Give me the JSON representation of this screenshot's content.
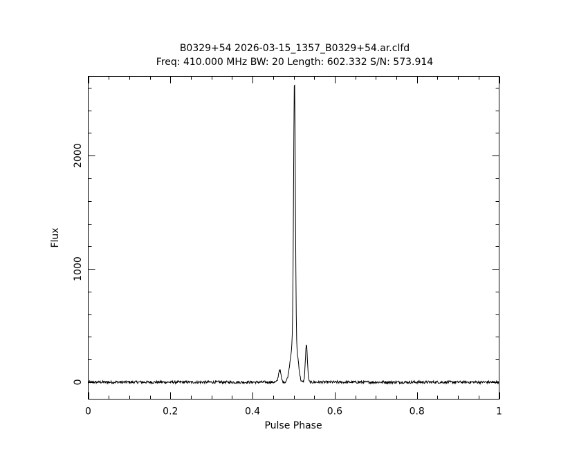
{
  "chart_data": {
    "type": "line",
    "title": "B0329+54 2026-03-15_1357_B0329+54.ar.clfd",
    "subtitle": "Freq: 410.000 MHz BW: 20 Length: 602.332 S/N: 573.914",
    "xlabel": "Pulse Phase",
    "ylabel": "Flux",
    "xlim": [
      0,
      1
    ],
    "ylim": [
      -150,
      2700
    ],
    "x_ticks": [
      0,
      0.2,
      0.4,
      0.6,
      0.8,
      1
    ],
    "x_tick_labels": [
      "0",
      "0.2",
      "0.4",
      "0.6",
      "0.8",
      "1"
    ],
    "y_ticks": [
      0,
      1000,
      2000
    ],
    "y_tick_labels": [
      "0",
      "1000",
      "2000"
    ],
    "grid": false,
    "legend": "none",
    "series": [
      {
        "baseline": 0,
        "noise_amplitude": 12,
        "components": [
          {
            "center": 0.466,
            "amplitude": 110,
            "width": 0.003
          },
          {
            "center": 0.497,
            "amplitude": 300,
            "width": 0.006
          },
          {
            "center": 0.502,
            "amplitude": 2420,
            "width": 0.0022
          },
          {
            "center": 0.509,
            "amplitude": 200,
            "width": 0.004
          },
          {
            "center": 0.531,
            "amplitude": 330,
            "width": 0.0025
          }
        ],
        "peak": {
          "x": 0.502,
          "y": 2570
        },
        "color": "#000000"
      }
    ]
  }
}
